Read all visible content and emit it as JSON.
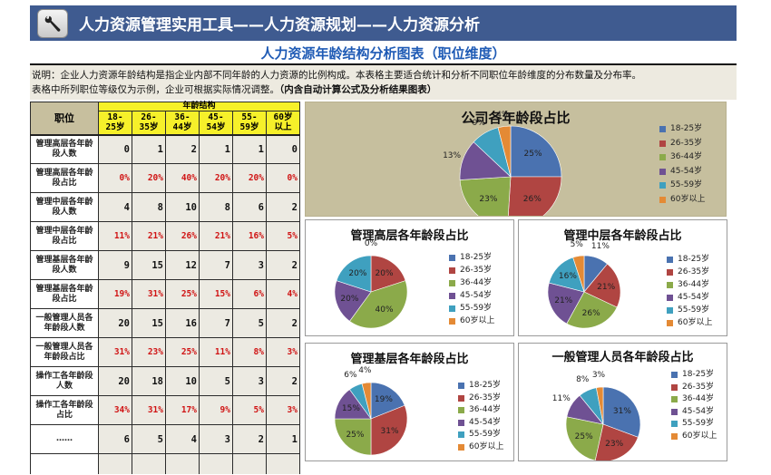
{
  "header": {
    "icon": "wrench-icon",
    "title": "人力资源管理实用工具——人力资源规划——人力资源分析"
  },
  "subtitle": "人力资源年龄结构分析图表（职位维度）",
  "description": {
    "line1": "说明：企业人力资源年龄结构是指企业内部不同年龄的人力资源的比例构成。本表格主要适合统计和分析不同职位年龄维度的分布数量及分布率。",
    "line2": "表格中所列职位等级仅为示例，企业可根据实际情况调整。",
    "line2_bold": "（内含自动计算公式及分析结果图表）"
  },
  "colors": {
    "header_bg": "#3F5B90",
    "subtitle": "#1F5BB5",
    "yellow_header": "#F6F02A",
    "position_header": "#C7BF9E",
    "pct_text": "#D01414",
    "company_chart_bg": "#C6BF9E"
  },
  "table": {
    "position_header": "职位",
    "group_header": "年龄结构",
    "age_headers": [
      {
        "l1": "18-",
        "l2": "25岁"
      },
      {
        "l1": "26-",
        "l2": "35岁"
      },
      {
        "l1": "36-",
        "l2": "44岁"
      },
      {
        "l1": "45-",
        "l2": "54岁"
      },
      {
        "l1": "55-",
        "l2": "59岁"
      },
      {
        "l1": "60岁",
        "l2": "以上"
      }
    ],
    "rows": [
      {
        "label1": "管理高层各年龄",
        "label2": "段人数",
        "values": [
          "0",
          "1",
          "2",
          "1",
          "1",
          "0"
        ],
        "pct": false
      },
      {
        "label1": "管理高层各年龄",
        "label2": "段占比",
        "values": [
          "0%",
          "20%",
          "40%",
          "20%",
          "20%",
          "0%"
        ],
        "pct": true
      },
      {
        "label1": "管理中层各年龄",
        "label2": "段人数",
        "values": [
          "4",
          "8",
          "10",
          "8",
          "6",
          "2"
        ],
        "pct": false
      },
      {
        "label1": "管理中层各年龄",
        "label2": "段占比",
        "values": [
          "11%",
          "21%",
          "26%",
          "21%",
          "16%",
          "5%"
        ],
        "pct": true
      },
      {
        "label1": "管理基层各年龄",
        "label2": "段人数",
        "values": [
          "9",
          "15",
          "12",
          "7",
          "3",
          "2"
        ],
        "pct": false
      },
      {
        "label1": "管理基层各年龄",
        "label2": "段占比",
        "values": [
          "19%",
          "31%",
          "25%",
          "15%",
          "6%",
          "4%"
        ],
        "pct": true
      },
      {
        "label1": "一般管理人员各",
        "label2": "年龄段人数",
        "values": [
          "20",
          "15",
          "16",
          "7",
          "5",
          "2"
        ],
        "pct": false
      },
      {
        "label1": "一般管理人员各",
        "label2": "年龄段占比",
        "values": [
          "31%",
          "23%",
          "25%",
          "11%",
          "8%",
          "3%"
        ],
        "pct": true
      },
      {
        "label1": "操作工各年龄段",
        "label2": "人数",
        "values": [
          "20",
          "18",
          "10",
          "5",
          "3",
          "2"
        ],
        "pct": false
      },
      {
        "label1": "操作工各年龄段",
        "label2": "占比",
        "values": [
          "34%",
          "31%",
          "17%",
          "9%",
          "5%",
          "3%"
        ],
        "pct": true
      },
      {
        "label1": "……",
        "label2": "",
        "values": [
          "6",
          "5",
          "4",
          "3",
          "2",
          "1"
        ],
        "pct": false
      }
    ]
  },
  "legend_labels": [
    "18-25岁",
    "26-35岁",
    "36-44岁",
    "45-54岁",
    "55-59岁",
    "60岁以上"
  ],
  "series_colors": [
    "#4A72B0",
    "#B04542",
    "#8BAA4A",
    "#6F5193",
    "#3FA0BF",
    "#E48A35"
  ],
  "chart_data": [
    {
      "type": "pie",
      "title": "公司各年龄段占比",
      "categories": [
        "18-25岁",
        "26-35岁",
        "36-44岁",
        "45-54岁",
        "55-59岁",
        "60岁以上"
      ],
      "values": [
        25,
        26,
        23,
        13,
        9,
        4
      ],
      "labels": [
        "25%",
        "26%",
        "23%",
        "13%",
        "9%",
        "4%"
      ],
      "legend_position": "right"
    },
    {
      "type": "pie",
      "title": "管理高层各年龄段占比",
      "categories": [
        "18-25岁",
        "26-35岁",
        "36-44岁",
        "45-54岁",
        "55-59岁",
        "60岁以上"
      ],
      "values": [
        0,
        20,
        40,
        20,
        20,
        0
      ],
      "labels": [
        "0%",
        "20%",
        "40%",
        "20%",
        "20%",
        ""
      ],
      "legend_position": "right"
    },
    {
      "type": "pie",
      "title": "管理中层各年龄段占比",
      "categories": [
        "18-25岁",
        "26-35岁",
        "36-44岁",
        "45-54岁",
        "55-59岁",
        "60岁以上"
      ],
      "values": [
        11,
        21,
        26,
        21,
        16,
        5
      ],
      "labels": [
        "11%",
        "21%",
        "26%",
        "21%",
        "16%",
        "5%"
      ],
      "legend_position": "right"
    },
    {
      "type": "pie",
      "title": "管理基层各年龄段占比",
      "categories": [
        "18-25岁",
        "26-35岁",
        "36-44岁",
        "45-54岁",
        "55-59岁",
        "60岁以上"
      ],
      "values": [
        19,
        31,
        25,
        15,
        6,
        4
      ],
      "labels": [
        "19%",
        "31%",
        "25%",
        "15%",
        "6%",
        "4%"
      ],
      "legend_position": "right"
    },
    {
      "type": "pie",
      "title": "一般管理人员各年龄段占比",
      "categories": [
        "18-25岁",
        "26-35岁",
        "36-44岁",
        "45-54岁",
        "55-59岁",
        "60岁以上"
      ],
      "values": [
        31,
        23,
        25,
        11,
        8,
        3
      ],
      "labels": [
        "31%",
        "23%",
        "25%",
        "11%",
        "8%",
        "3%"
      ],
      "legend_position": "right"
    }
  ]
}
